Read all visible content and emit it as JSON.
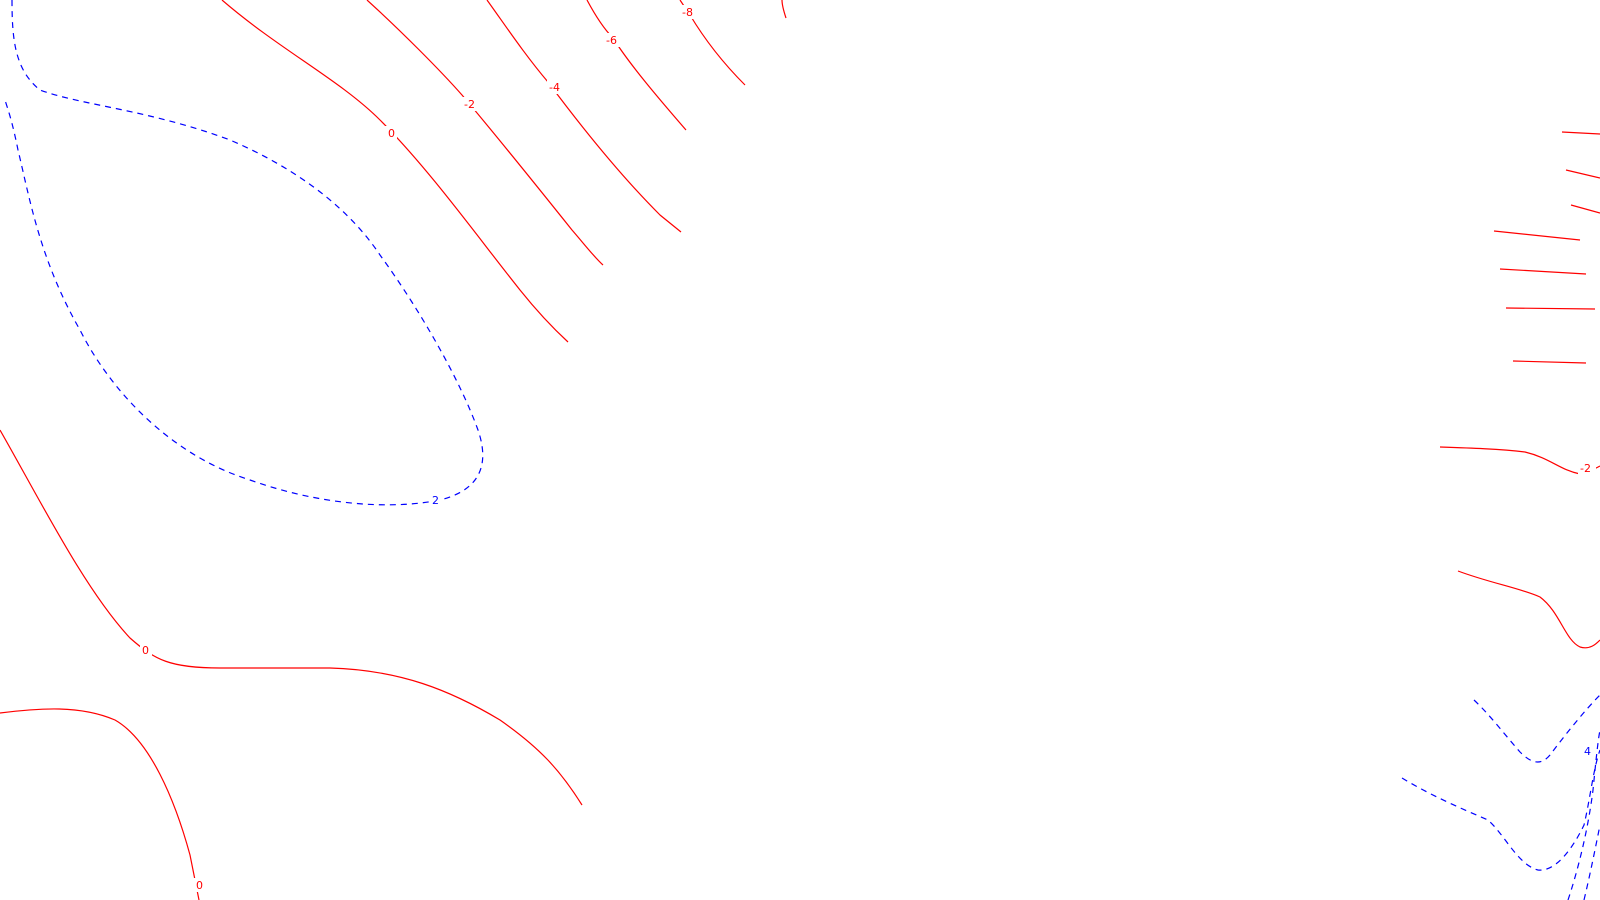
{
  "colors": {
    "negative_or_zero": "#ff0000",
    "positive": "#0000ff",
    "background": "#ffffff"
  },
  "map": {
    "kind": "contour-map",
    "line_style": {
      "solid": "values <= 0",
      "dashed": "values > 0"
    },
    "contour_labels": [
      {
        "id": "lbl-m8-top",
        "text": "-8"
      },
      {
        "id": "lbl-m6-top",
        "text": "-6"
      },
      {
        "id": "lbl-m4-top",
        "text": "-4"
      },
      {
        "id": "lbl-m2-top",
        "text": "-2"
      },
      {
        "id": "lbl-0-top",
        "text": "0"
      },
      {
        "id": "lbl-2-left",
        "text": "2"
      },
      {
        "id": "lbl-0-mid",
        "text": "0"
      },
      {
        "id": "lbl-0-bottom",
        "text": "0"
      },
      {
        "id": "lbl-m2-right",
        "text": "-2"
      },
      {
        "id": "lbl-4-right",
        "text": "4"
      }
    ]
  }
}
